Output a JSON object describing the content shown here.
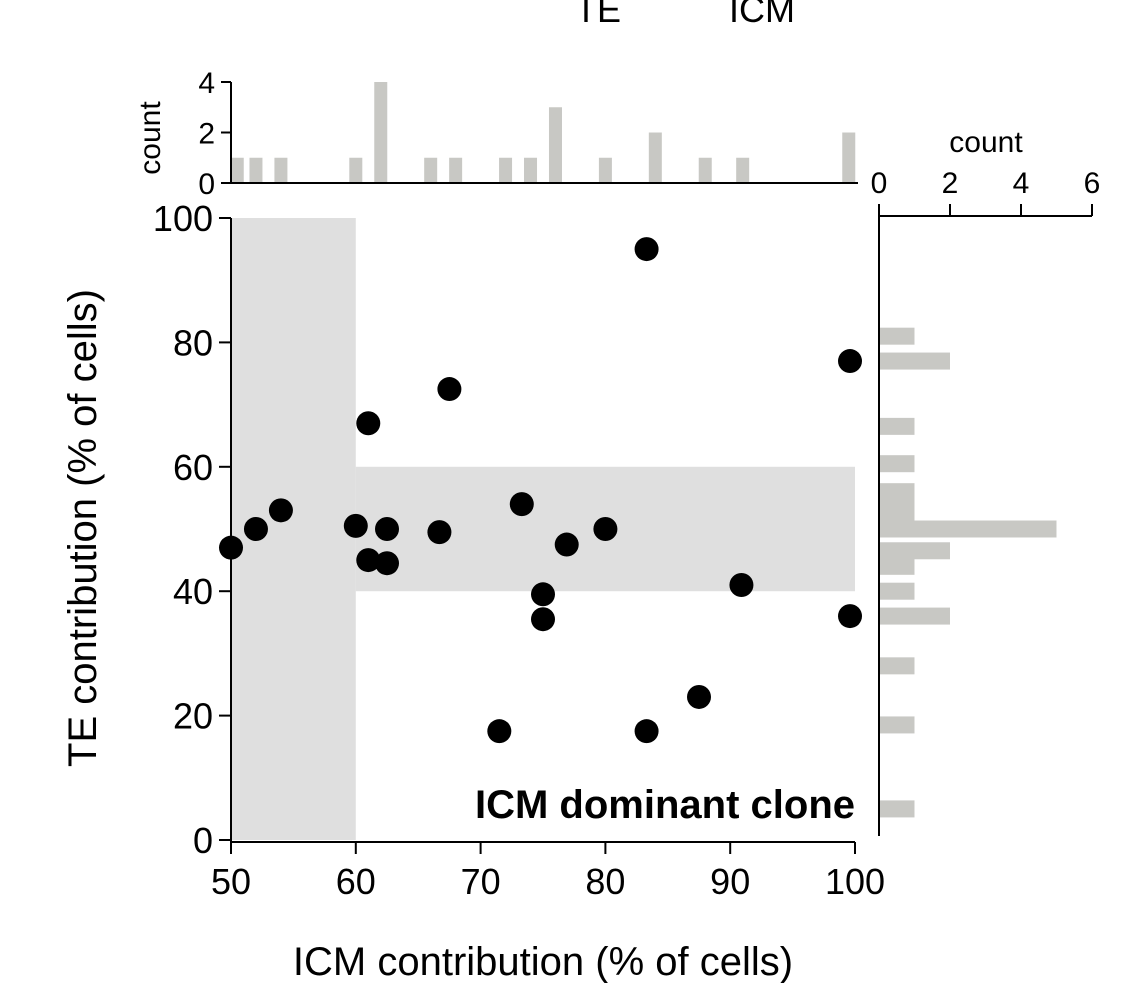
{
  "chart_data": {
    "type": "scatter",
    "title": "",
    "top_labels": [
      "TE",
      "ICM"
    ],
    "annotation": "ICM dominant clone",
    "colors": {
      "points": "#000000",
      "shade": "#d9d9d9",
      "bars": "#c8c8c4"
    },
    "xlabel": "ICM contribution (% of cells)",
    "ylabel": "TE contribution (% of cells)",
    "xlim": [
      50,
      100
    ],
    "ylim": [
      0,
      100
    ],
    "xticks": [
      "50",
      "60",
      "70",
      "80",
      "90",
      "100"
    ],
    "yticks": [
      "0",
      "20",
      "40",
      "60",
      "80",
      "100"
    ],
    "shaded_regions": [
      {
        "x": [
          50,
          60
        ],
        "y": [
          0,
          100
        ]
      },
      {
        "x": [
          60,
          100
        ],
        "y": [
          40,
          60
        ]
      }
    ],
    "points": [
      {
        "x": 50,
        "y": 47
      },
      {
        "x": 52,
        "y": 50
      },
      {
        "x": 54,
        "y": 53
      },
      {
        "x": 60,
        "y": 50.5
      },
      {
        "x": 61,
        "y": 67
      },
      {
        "x": 61,
        "y": 45
      },
      {
        "x": 62.5,
        "y": 50
      },
      {
        "x": 62.5,
        "y": 44.5
      },
      {
        "x": 66.7,
        "y": 49.5
      },
      {
        "x": 67.5,
        "y": 72.5
      },
      {
        "x": 71.5,
        "y": 17.5
      },
      {
        "x": 73.3,
        "y": 54
      },
      {
        "x": 75,
        "y": 39.5
      },
      {
        "x": 75,
        "y": 35.5
      },
      {
        "x": 76.9,
        "y": 47.5
      },
      {
        "x": 80,
        "y": 50
      },
      {
        "x": 83.3,
        "y": 95
      },
      {
        "x": 83.3,
        "y": 17.5
      },
      {
        "x": 87.5,
        "y": 23
      },
      {
        "x": 90.9,
        "y": 41
      },
      {
        "x": 99.6,
        "y": 77
      },
      {
        "x": 99.6,
        "y": 36
      }
    ],
    "top_histogram": {
      "ylabel": "count",
      "yticks": [
        "0",
        "2",
        "4"
      ],
      "ylim": [
        0,
        4
      ],
      "bins": [
        {
          "x": 50.5,
          "count": 1
        },
        {
          "x": 52,
          "count": 1
        },
        {
          "x": 54,
          "count": 1
        },
        {
          "x": 60,
          "count": 1
        },
        {
          "x": 62,
          "count": 4
        },
        {
          "x": 66,
          "count": 1
        },
        {
          "x": 68,
          "count": 1
        },
        {
          "x": 72,
          "count": 1
        },
        {
          "x": 74,
          "count": 1
        },
        {
          "x": 76,
          "count": 3
        },
        {
          "x": 80,
          "count": 1
        },
        {
          "x": 84,
          "count": 2
        },
        {
          "x": 88,
          "count": 1
        },
        {
          "x": 91,
          "count": 1
        },
        {
          "x": 99.5,
          "count": 2
        }
      ]
    },
    "right_histogram": {
      "xlabel": "count",
      "xticks": [
        "0",
        "2",
        "4",
        "6"
      ],
      "xlim": [
        0,
        6
      ],
      "bins": [
        {
          "y": 95,
          "count": 0
        },
        {
          "y": 81,
          "count": 1
        },
        {
          "y": 77,
          "count": 2
        },
        {
          "y": 66.5,
          "count": 1
        },
        {
          "y": 60.5,
          "count": 1
        },
        {
          "y": 56,
          "count": 1
        },
        {
          "y": 54,
          "count": 1
        },
        {
          "y": 52,
          "count": 1
        },
        {
          "y": 50,
          "count": 5
        },
        {
          "y": 46.5,
          "count": 2
        },
        {
          "y": 44,
          "count": 1
        },
        {
          "y": 40,
          "count": 1
        },
        {
          "y": 36,
          "count": 2
        },
        {
          "y": 28,
          "count": 1
        },
        {
          "y": 18.5,
          "count": 1
        },
        {
          "y": 5,
          "count": 1
        }
      ]
    }
  }
}
